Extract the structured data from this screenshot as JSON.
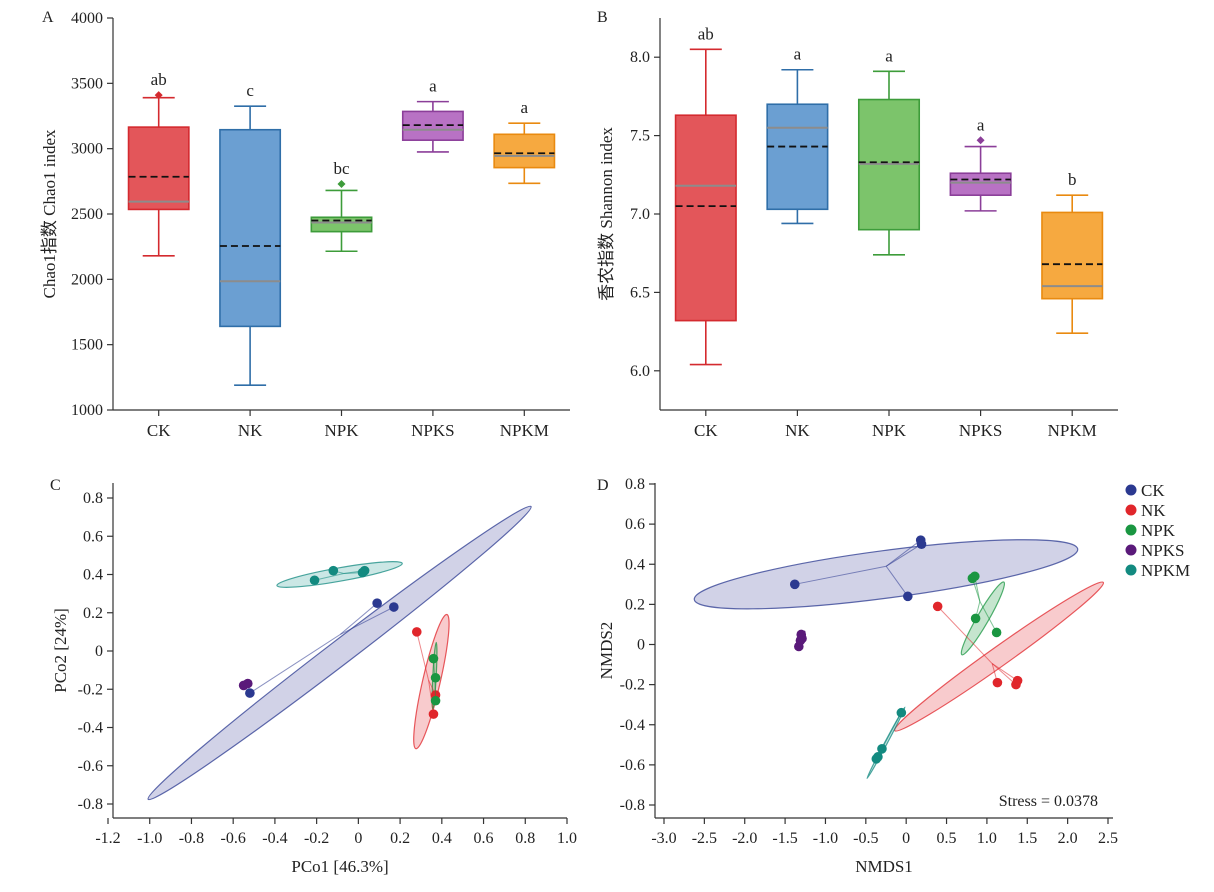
{
  "colors": {
    "CK": "#2b3990",
    "NK": "#e0262b",
    "NPK": "#1a9641",
    "NPKS": "#5a1a7a",
    "NPKM": "#138a80",
    "box_CK": "#e3565a",
    "box_NK": "#6b9fd2",
    "box_NPK": "#7cc46b",
    "box_NPKS": "#b872c4",
    "box_NPKM": "#f6a940",
    "edge_CK": "#d42a2f",
    "edge_NK": "#2f6ea8",
    "edge_NPK": "#3d9c3a",
    "edge_NPKS": "#8b3e99",
    "edge_NPKM": "#e98a10",
    "ellipse_CK": "#8c8fc2",
    "ellipse_NK": "#ee7d82",
    "ellipse_NPK": "#6fbf85",
    "ellipse_NPKM": "#7cc4bd"
  },
  "legend": [
    "CK",
    "NK",
    "NPK",
    "NPKS",
    "NPKM"
  ],
  "chart_data": [
    {
      "panel": "A",
      "type": "box",
      "ylabel": "Chao1指数 Chao1 index",
      "ylim": [
        1000,
        4000
      ],
      "yticks": [
        "1000",
        "1500",
        "2000",
        "2500",
        "3000",
        "3500",
        "4000"
      ],
      "categories": [
        "CK",
        "NK",
        "NPK",
        "NPKS",
        "NPKM"
      ],
      "boxes": [
        {
          "name": "CK",
          "min": 2180,
          "q1": 2535,
          "median": 2595,
          "mean": 2785,
          "q3": 3165,
          "max": 3390,
          "outliers": [
            3410
          ],
          "sig": "ab"
        },
        {
          "name": "NK",
          "min": 1190,
          "q1": 1640,
          "median": 1985,
          "mean": 2255,
          "q3": 3145,
          "max": 3325,
          "outliers": [],
          "sig": "c"
        },
        {
          "name": "NPK",
          "min": 2215,
          "q1": 2365,
          "median": 2435,
          "mean": 2450,
          "q3": 2475,
          "max": 2680,
          "outliers": [
            2730
          ],
          "sig": "bc"
        },
        {
          "name": "NPKS",
          "min": 2975,
          "q1": 3065,
          "median": 3145,
          "mean": 3180,
          "q3": 3285,
          "max": 3360,
          "outliers": [],
          "sig": "a"
        },
        {
          "name": "NPKM",
          "min": 2735,
          "q1": 2855,
          "median": 2945,
          "mean": 2965,
          "q3": 3110,
          "max": 3195,
          "outliers": [],
          "sig": "a"
        }
      ]
    },
    {
      "panel": "B",
      "type": "box",
      "ylabel": "香农指数 Shannon index",
      "ylim": [
        5.75,
        8.25
      ],
      "yticks": [
        "6.0",
        "6.5",
        "7.0",
        "7.5",
        "8.0"
      ],
      "categories": [
        "CK",
        "NK",
        "NPK",
        "NPKS",
        "NPKM"
      ],
      "boxes": [
        {
          "name": "CK",
          "min": 6.04,
          "q1": 6.32,
          "median": 7.18,
          "mean": 7.05,
          "q3": 7.63,
          "max": 8.05,
          "outliers": [],
          "sig": "ab"
        },
        {
          "name": "NK",
          "min": 6.94,
          "q1": 7.03,
          "median": 7.55,
          "mean": 7.43,
          "q3": 7.7,
          "max": 7.92,
          "outliers": [],
          "sig": "a"
        },
        {
          "name": "NPK",
          "min": 6.74,
          "q1": 6.9,
          "median": 7.32,
          "mean": 7.33,
          "q3": 7.73,
          "max": 7.91,
          "outliers": [],
          "sig": "a"
        },
        {
          "name": "NPKS",
          "min": 7.02,
          "q1": 7.12,
          "median": 7.2,
          "mean": 7.22,
          "q3": 7.26,
          "max": 7.43,
          "outliers": [
            7.47
          ],
          "sig": "a"
        },
        {
          "name": "NPKM",
          "min": 6.24,
          "q1": 6.46,
          "median": 6.54,
          "mean": 6.68,
          "q3": 7.01,
          "max": 7.12,
          "outliers": [],
          "sig": "b"
        }
      ]
    },
    {
      "panel": "C",
      "type": "scatter",
      "xlabel": "PCo1 [46.3%]",
      "ylabel": "PCo2 [24%]",
      "xlim": [
        -1.2,
        1.0
      ],
      "ylim": [
        -0.8,
        0.8
      ],
      "xticks": [
        "-1.2",
        "-1.0",
        "-0.8",
        "-0.6",
        "-0.4",
        "-0.2",
        "0",
        "0.2",
        "0.4",
        "0.6",
        "0.8",
        "1.0"
      ],
      "yticks": [
        "-0.8",
        "-0.6",
        "-0.4",
        "-0.2",
        "0",
        "0.2",
        "0.4",
        "0.6",
        "0.8"
      ],
      "series": [
        {
          "name": "CK",
          "points": [
            [
              0.09,
              0.25
            ],
            [
              0.17,
              0.23
            ],
            [
              -0.52,
              -0.22
            ]
          ],
          "ellipse": {
            "cx": -0.09,
            "cy": -0.01,
            "rx": 1.155,
            "ry": 0.058,
            "angle": -37.4
          }
        },
        {
          "name": "NK",
          "points": [
            [
              0.28,
              0.1
            ],
            [
              0.37,
              -0.23
            ],
            [
              0.36,
              -0.33
            ]
          ],
          "ellipse": {
            "cx": 0.35,
            "cy": -0.16,
            "rx": 0.33,
            "ry": 0.042,
            "angle": -77
          }
        },
        {
          "name": "NPK",
          "points": [
            [
              0.36,
              -0.04
            ],
            [
              0.37,
              -0.14
            ],
            [
              0.37,
              -0.26
            ]
          ],
          "ellipse": {
            "cx": 0.365,
            "cy": -0.13,
            "rx": 0.16,
            "ry": 0.008,
            "angle": -87
          }
        },
        {
          "name": "NPKS",
          "points": [
            [
              -0.53,
              -0.17
            ],
            [
              -0.55,
              -0.18
            ]
          ],
          "ellipse": null
        },
        {
          "name": "NPKM",
          "points": [
            [
              -0.21,
              0.37
            ],
            [
              -0.12,
              0.42
            ],
            [
              0.03,
              0.42
            ],
            [
              0.02,
              0.41
            ]
          ],
          "ellipse": {
            "cx": -0.09,
            "cy": 0.4,
            "rx": 0.305,
            "ry": 0.032,
            "angle": -10
          }
        }
      ]
    },
    {
      "panel": "D",
      "type": "scatter",
      "xlabel": "NMDS1",
      "ylabel": "NMDS2",
      "xlim": [
        -3.0,
        2.5
      ],
      "ylim": [
        -0.8,
        0.8
      ],
      "xticks": [
        "-3.0",
        "-2.5",
        "-2.0",
        "-1.5",
        "-1.0",
        "-0.5",
        "0",
        "0.5",
        "1.0",
        "1.5",
        "2.0",
        "2.5"
      ],
      "yticks": [
        "-0.8",
        "-0.6",
        "-0.4",
        "-0.2",
        "0",
        "0.2",
        "0.4",
        "0.6",
        "0.8"
      ],
      "annotation": "Stress = 0.0378",
      "series": [
        {
          "name": "CK",
          "points": [
            [
              -1.38,
              0.3
            ],
            [
              0.18,
              0.52
            ],
            [
              0.19,
              0.5
            ],
            [
              0.02,
              0.24
            ]
          ],
          "ellipse": {
            "cx": -0.25,
            "cy": 0.35,
            "rx": 2.395,
            "ry": 0.295,
            "angle": -7.5
          }
        },
        {
          "name": "NK",
          "points": [
            [
              0.39,
              0.19
            ],
            [
              1.13,
              -0.19
            ],
            [
              1.36,
              -0.2
            ],
            [
              1.38,
              -0.18
            ]
          ],
          "ellipse": {
            "cx": 1.15,
            "cy": -0.06,
            "rx": 1.585,
            "ry": 0.12,
            "angle": -35.4
          }
        },
        {
          "name": "NPK",
          "points": [
            [
              0.82,
              0.33
            ],
            [
              0.85,
              0.34
            ],
            [
              0.86,
              0.13
            ],
            [
              1.12,
              0.06
            ]
          ],
          "ellipse": {
            "cx": 0.95,
            "cy": 0.13,
            "rx": 0.52,
            "ry": 0.072,
            "angle": -60
          }
        },
        {
          "name": "NPKS",
          "points": [
            [
              -1.3,
              0.05
            ],
            [
              -1.29,
              0.03
            ],
            [
              -1.33,
              -0.01
            ],
            [
              -1.31,
              0.02
            ]
          ],
          "ellipse": {
            "cx": -1.3,
            "cy": 0.03,
            "rx": 0.1,
            "ry": 0.02,
            "angle": -65
          }
        },
        {
          "name": "NPKM",
          "points": [
            [
              -0.06,
              -0.34
            ],
            [
              -0.3,
              -0.52
            ],
            [
              -0.35,
              -0.56
            ],
            [
              -0.37,
              -0.57
            ]
          ],
          "ellipse": {
            "cx": -0.25,
            "cy": -0.49,
            "rx": 0.5,
            "ry": 0.016,
            "angle": -62
          }
        }
      ]
    }
  ]
}
